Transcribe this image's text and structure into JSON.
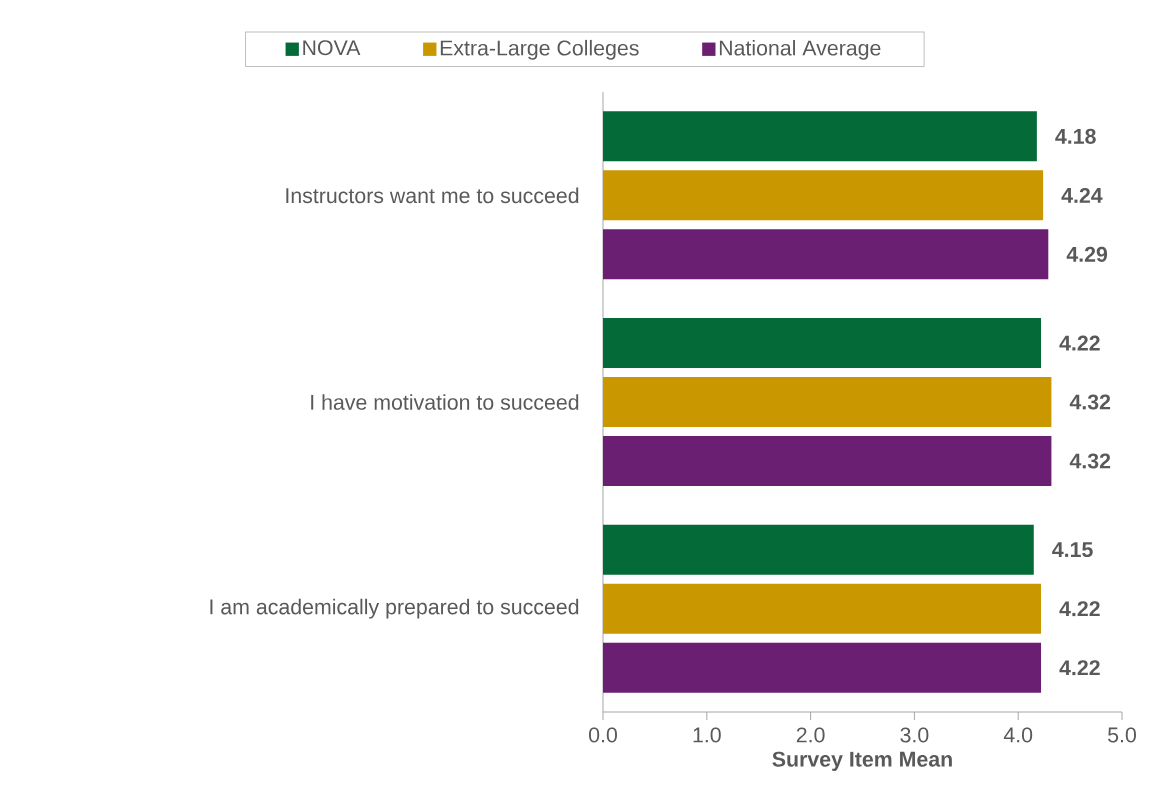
{
  "chart_data": {
    "type": "bar",
    "orientation": "horizontal",
    "xlabel": "Survey Item Mean",
    "categories": [
      "Instructors want me to succeed",
      "I have motivation to succeed",
      "I am academically prepared to succeed"
    ],
    "series": [
      {
        "name": "NOVA",
        "color": "#046a38",
        "values": [
          4.18,
          4.22,
          4.15
        ]
      },
      {
        "name": "Extra-Large Colleges",
        "color": "#c99700",
        "values": [
          4.24,
          4.32,
          4.22
        ]
      },
      {
        "name": "National Average",
        "color": "#6a1f73",
        "values": [
          4.29,
          4.32,
          4.22
        ]
      }
    ],
    "xlim": [
      0,
      5
    ],
    "xticks": [
      {
        "value": 0,
        "label": "0.0"
      },
      {
        "value": 1,
        "label": "1.0"
      },
      {
        "value": 2,
        "label": "2.0"
      },
      {
        "value": 3,
        "label": "3.0"
      },
      {
        "value": 4,
        "label": "4.0"
      },
      {
        "value": 5,
        "label": "5.0"
      }
    ],
    "data_labels": true,
    "legend": "top",
    "grid": false
  }
}
